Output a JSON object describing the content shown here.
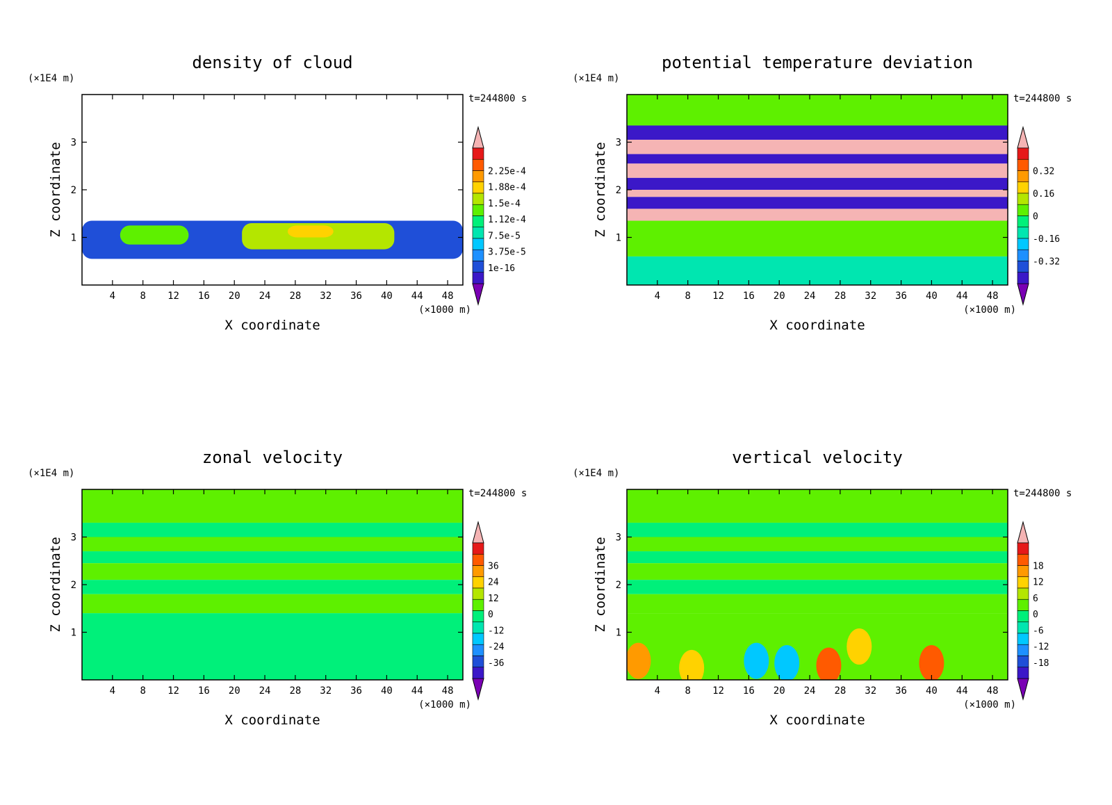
{
  "chart_data": [
    {
      "type": "heatmap",
      "title": "density of cloud",
      "xlabel": "X coordinate",
      "ylabel": "Z coordinate",
      "x_unit": "(×1000 m)",
      "y_unit": "(×1E4 m)",
      "time_label": "t=244800 s",
      "xlim": [
        0,
        50
      ],
      "ylim": [
        0,
        4
      ],
      "x_ticks": [
        4,
        8,
        12,
        16,
        20,
        24,
        28,
        32,
        36,
        40,
        44,
        48
      ],
      "y_ticks": [
        1,
        2,
        3
      ],
      "colorbar": {
        "labels": [
          "2.25e-4",
          "1.88e-4",
          "1.5e-4",
          "1.12e-4",
          "7.5e-5",
          "3.75e-5",
          "1e-16"
        ],
        "values": [
          0.000225,
          0.000188,
          0.00015,
          0.000112,
          7.5e-05,
          3.75e-05,
          1e-16
        ]
      },
      "regions": [
        {
          "x": [
            0,
            50
          ],
          "z": [
            0.55,
            1.35
          ],
          "level": 0.15
        },
        {
          "x": [
            5,
            14
          ],
          "z": [
            0.85,
            1.25
          ],
          "level": 0.55
        },
        {
          "x": [
            21,
            41
          ],
          "z": [
            0.75,
            1.3
          ],
          "level": 0.6
        },
        {
          "x": [
            27,
            33
          ],
          "z": [
            1.0,
            1.25
          ],
          "level": 0.7
        }
      ]
    },
    {
      "type": "heatmap",
      "title": "potential temperature deviation",
      "xlabel": "X coordinate",
      "ylabel": "Z coordinate",
      "x_unit": "(×1000 m)",
      "y_unit": "(×1E4 m)",
      "time_label": "t=244800 s",
      "xlim": [
        0,
        50
      ],
      "ylim": [
        0,
        4
      ],
      "x_ticks": [
        4,
        8,
        12,
        16,
        20,
        24,
        28,
        32,
        36,
        40,
        44,
        48
      ],
      "y_ticks": [
        1,
        2,
        3
      ],
      "colorbar": {
        "labels": [
          "0.32",
          "0.16",
          "0",
          "-0.16",
          "-0.32"
        ],
        "values": [
          0.32,
          0.16,
          0,
          -0.16,
          -0.32
        ]
      },
      "bands": [
        {
          "z": [
            3.35,
            4.0
          ],
          "value": 0.0
        },
        {
          "z": [
            3.05,
            3.35
          ],
          "value": -0.35
        },
        {
          "z": [
            2.75,
            3.05
          ],
          "value": 0.4
        },
        {
          "z": [
            2.55,
            2.75
          ],
          "value": -0.35
        },
        {
          "z": [
            2.25,
            2.55
          ],
          "value": 0.4
        },
        {
          "z": [
            2.0,
            2.25
          ],
          "value": -0.35
        },
        {
          "z": [
            1.85,
            2.0
          ],
          "value": 0.4
        },
        {
          "z": [
            1.6,
            1.85
          ],
          "value": -0.35
        },
        {
          "z": [
            1.35,
            1.6
          ],
          "value": 0.4
        },
        {
          "z": [
            0.6,
            1.35
          ],
          "value": 0.0
        },
        {
          "z": [
            0.0,
            0.6
          ],
          "value": -0.1
        }
      ]
    },
    {
      "type": "heatmap",
      "title": "zonal velocity",
      "xlabel": "X coordinate",
      "ylabel": "Z coordinate",
      "x_unit": "(×1000 m)",
      "y_unit": "(×1E4 m)",
      "time_label": "t=244800 s",
      "xlim": [
        0,
        50
      ],
      "ylim": [
        0,
        4
      ],
      "x_ticks": [
        4,
        8,
        12,
        16,
        20,
        24,
        28,
        32,
        36,
        40,
        44,
        48
      ],
      "y_ticks": [
        1,
        2,
        3
      ],
      "colorbar": {
        "labels": [
          "36",
          "24",
          "12",
          "0",
          "-12",
          "-24",
          "-36"
        ],
        "values": [
          36,
          24,
          12,
          0,
          -12,
          -24,
          -36
        ]
      },
      "bands": [
        {
          "z": [
            3.3,
            4.0
          ],
          "value": 2
        },
        {
          "z": [
            3.0,
            3.3
          ],
          "value": -2
        },
        {
          "z": [
            2.7,
            3.0
          ],
          "value": 2
        },
        {
          "z": [
            2.45,
            2.7
          ],
          "value": -2
        },
        {
          "z": [
            2.1,
            2.45
          ],
          "value": 2
        },
        {
          "z": [
            1.8,
            2.1
          ],
          "value": -2
        },
        {
          "z": [
            1.4,
            1.8
          ],
          "value": 2
        },
        {
          "z": [
            0.0,
            1.4
          ],
          "value": -1
        }
      ]
    },
    {
      "type": "heatmap",
      "title": "vertical velocity",
      "xlabel": "X coordinate",
      "ylabel": "Z coordinate",
      "x_unit": "(×1000 m)",
      "y_unit": "(×1E4 m)",
      "time_label": "t=244800 s",
      "xlim": [
        0,
        50
      ],
      "ylim": [
        0,
        4
      ],
      "x_ticks": [
        4,
        8,
        12,
        16,
        20,
        24,
        28,
        32,
        36,
        40,
        44,
        48
      ],
      "y_ticks": [
        1,
        2,
        3
      ],
      "colorbar": {
        "labels": [
          "18",
          "12",
          "6",
          "0",
          "-6",
          "-12",
          "-18"
        ],
        "values": [
          18,
          12,
          6,
          0,
          -6,
          -12,
          -18
        ]
      },
      "bands": [
        {
          "z": [
            3.3,
            4.0
          ],
          "value": 1
        },
        {
          "z": [
            3.0,
            3.3
          ],
          "value": -1
        },
        {
          "z": [
            2.7,
            3.0
          ],
          "value": 1
        },
        {
          "z": [
            2.45,
            2.7
          ],
          "value": -1
        },
        {
          "z": [
            2.1,
            2.45
          ],
          "value": 1
        },
        {
          "z": [
            1.8,
            2.1
          ],
          "value": -1
        },
        {
          "z": [
            1.4,
            1.8
          ],
          "value": 1
        },
        {
          "z": [
            0.0,
            1.4
          ],
          "value": 0
        }
      ],
      "cells": [
        {
          "x": 1.5,
          "z": 0.4,
          "value": 12
        },
        {
          "x": 8.5,
          "z": 0.25,
          "value": 9
        },
        {
          "x": 26.5,
          "z": 0.3,
          "value": 14
        },
        {
          "x": 30.5,
          "z": 0.7,
          "value": 8
        },
        {
          "x": 40,
          "z": 0.35,
          "value": 15
        },
        {
          "x": 17,
          "z": 0.4,
          "value": -9
        },
        {
          "x": 21,
          "z": 0.35,
          "value": -7
        }
      ]
    }
  ]
}
